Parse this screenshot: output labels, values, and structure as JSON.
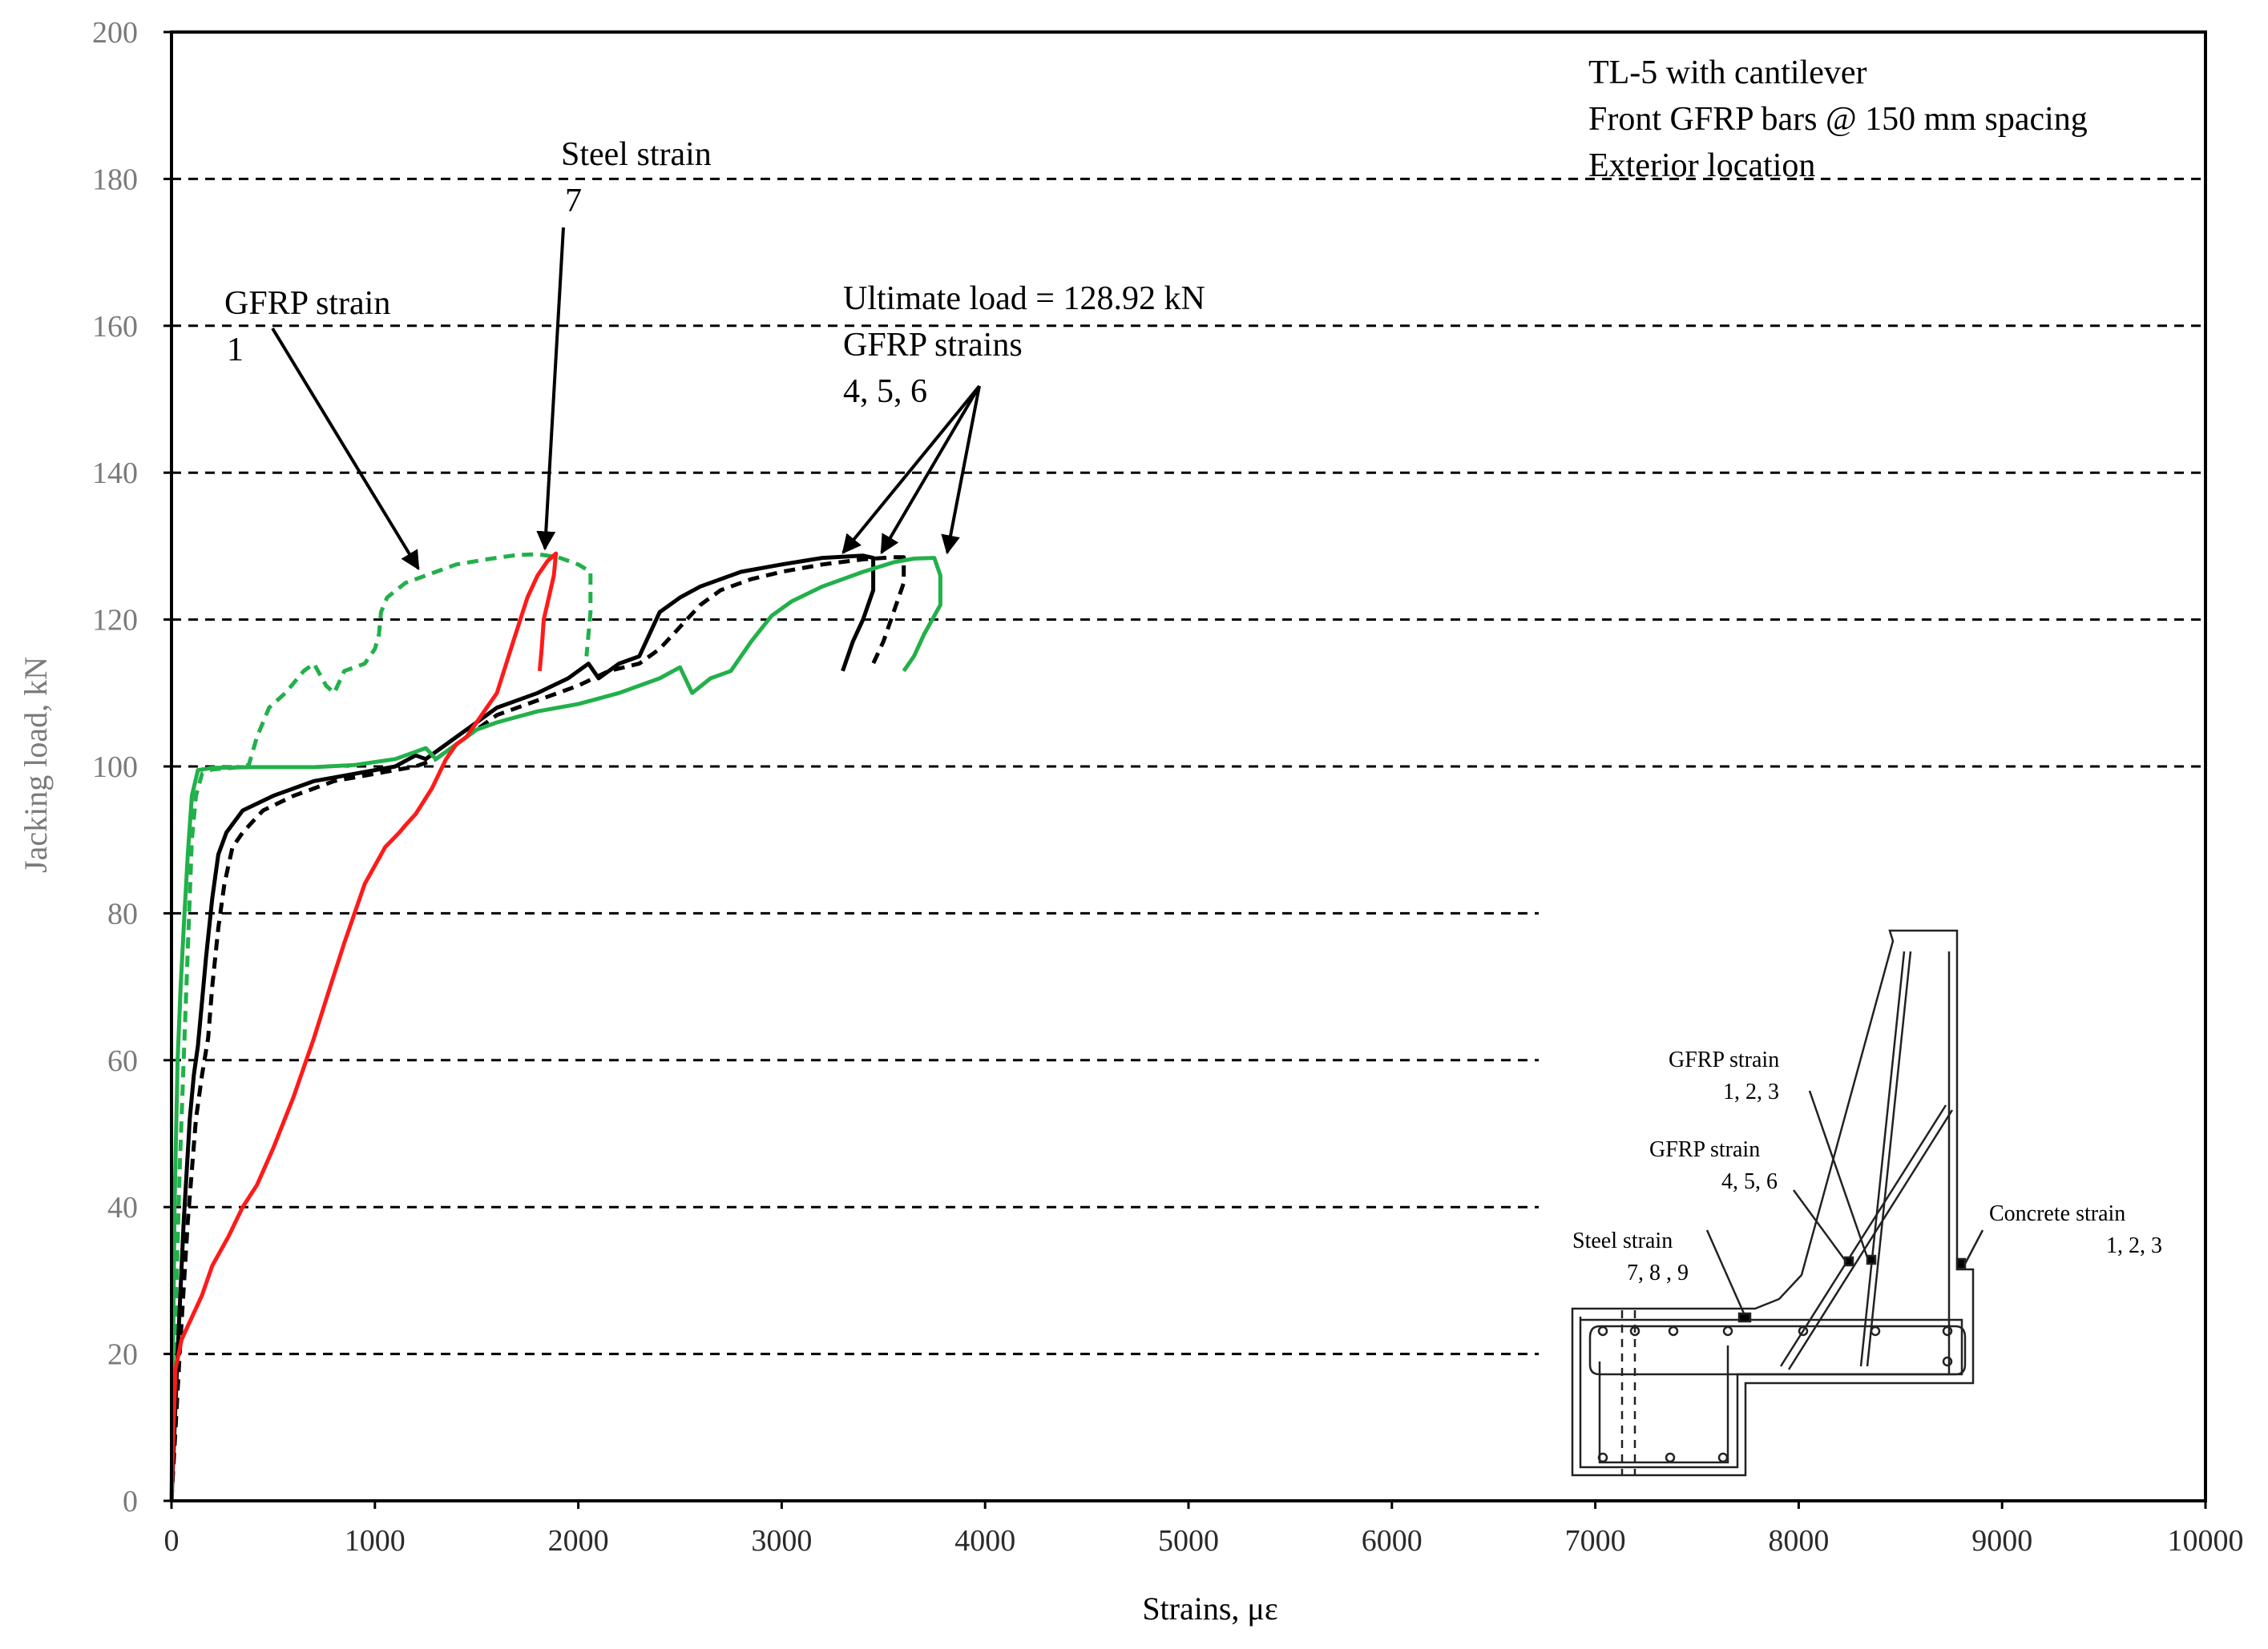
{
  "chart_data": {
    "type": "line",
    "xlabel": "Strains, με",
    "ylabel": "Jacking load, kN",
    "xlim": [
      0,
      10000
    ],
    "ylim": [
      0,
      200
    ],
    "xticks": [
      "0",
      "1000",
      "2000",
      "3000",
      "4000",
      "5000",
      "6000",
      "7000",
      "8000",
      "9000",
      "10000"
    ],
    "yticks": [
      "0",
      "20",
      "40",
      "60",
      "80",
      "100",
      "120",
      "140",
      "160",
      "180",
      "200"
    ],
    "grid": "horizontal dashed",
    "info_box": [
      "TL-5 with cantilever",
      "Front GFRP bars @ 150 mm spacing",
      "Exterior location"
    ],
    "annotations": {
      "gfrp1": [
        "GFRP strain",
        "1"
      ],
      "steel7": [
        "Steel strain",
        "7"
      ],
      "ultimate": [
        "Ultimate load = 128.92 kN",
        "GFRP strains",
        "4, 5, 6"
      ]
    },
    "inset_labels": {
      "gfrp123": [
        "GFRP strain",
        "1, 2, 3"
      ],
      "gfrp456": [
        "GFRP strain",
        "4, 5, 6"
      ],
      "steel789": [
        "Steel strain",
        "7, 8 , 9"
      ],
      "concrete": [
        "Concrete  strain",
        "1, 2, 3"
      ]
    },
    "series": [
      {
        "name": "GFRP strain 1",
        "color": "#22b04a",
        "dash": true,
        "points": [
          [
            0,
            0
          ],
          [
            20,
            25
          ],
          [
            40,
            45
          ],
          [
            60,
            60
          ],
          [
            80,
            75
          ],
          [
            100,
            90
          ],
          [
            120,
            96
          ],
          [
            150,
            99
          ],
          [
            200,
            99.6
          ],
          [
            300,
            99.8
          ],
          [
            380,
            100.2
          ],
          [
            420,
            104
          ],
          [
            480,
            108
          ],
          [
            560,
            110
          ],
          [
            650,
            113
          ],
          [
            700,
            114
          ],
          [
            760,
            111
          ],
          [
            800,
            110
          ],
          [
            850,
            113
          ],
          [
            950,
            114
          ],
          [
            1000,
            116
          ],
          [
            1020,
            118
          ],
          [
            1030,
            121
          ],
          [
            1060,
            123
          ],
          [
            1150,
            125
          ],
          [
            1250,
            126
          ],
          [
            1400,
            127.5
          ],
          [
            1550,
            128.2
          ],
          [
            1700,
            128.8
          ],
          [
            1800,
            128.9
          ],
          [
            1900,
            128.5
          ],
          [
            2000,
            127.5
          ],
          [
            2060,
            126.5
          ],
          [
            2060,
            121
          ],
          [
            2040,
            115
          ]
        ]
      },
      {
        "name": "GFRP strain 4",
        "color": "#000000",
        "dash": false,
        "points": [
          [
            0,
            0
          ],
          [
            30,
            20
          ],
          [
            60,
            38
          ],
          [
            90,
            52
          ],
          [
            110,
            58
          ],
          [
            130,
            62
          ],
          [
            150,
            68
          ],
          [
            170,
            74
          ],
          [
            200,
            82
          ],
          [
            230,
            88
          ],
          [
            270,
            91
          ],
          [
            350,
            94
          ],
          [
            500,
            96
          ],
          [
            700,
            98
          ],
          [
            900,
            99
          ],
          [
            1100,
            100
          ],
          [
            1200,
            101.5
          ],
          [
            1250,
            101
          ],
          [
            1300,
            102
          ],
          [
            1400,
            104
          ],
          [
            1500,
            106
          ],
          [
            1600,
            108
          ],
          [
            1800,
            110
          ],
          [
            1950,
            112
          ],
          [
            2050,
            114
          ],
          [
            2100,
            112
          ],
          [
            2200,
            114
          ],
          [
            2300,
            115
          ],
          [
            2350,
            118
          ],
          [
            2400,
            121
          ],
          [
            2500,
            123
          ],
          [
            2600,
            124.5
          ],
          [
            2800,
            126.5
          ],
          [
            3000,
            127.5
          ],
          [
            3200,
            128.4
          ],
          [
            3400,
            128.7
          ],
          [
            3450,
            128.4
          ],
          [
            3450,
            124
          ],
          [
            3400,
            120
          ],
          [
            3350,
            117
          ],
          [
            3300,
            113
          ]
        ]
      },
      {
        "name": "GFRP strain 5",
        "color": "#000000",
        "dash": true,
        "points": [
          [
            0,
            0
          ],
          [
            40,
            20
          ],
          [
            80,
            38
          ],
          [
            120,
            52
          ],
          [
            150,
            58
          ],
          [
            180,
            63
          ],
          [
            200,
            70
          ],
          [
            230,
            78
          ],
          [
            260,
            84
          ],
          [
            300,
            89
          ],
          [
            350,
            91
          ],
          [
            450,
            94
          ],
          [
            600,
            96
          ],
          [
            800,
            98
          ],
          [
            1000,
            99
          ],
          [
            1200,
            100
          ],
          [
            1300,
            101
          ],
          [
            1400,
            103
          ],
          [
            1500,
            105
          ],
          [
            1600,
            107
          ],
          [
            1800,
            109
          ],
          [
            2000,
            111
          ],
          [
            2150,
            113
          ],
          [
            2300,
            114
          ],
          [
            2400,
            116
          ],
          [
            2500,
            119
          ],
          [
            2600,
            122
          ],
          [
            2700,
            124
          ],
          [
            2850,
            125.5
          ],
          [
            3000,
            126.5
          ],
          [
            3200,
            127.5
          ],
          [
            3400,
            128.2
          ],
          [
            3550,
            128.5
          ],
          [
            3600,
            128.5
          ],
          [
            3600,
            125
          ],
          [
            3550,
            121
          ],
          [
            3500,
            117
          ],
          [
            3450,
            114
          ]
        ]
      },
      {
        "name": "GFRP strain 6",
        "color": "#22b04a",
        "dash": false,
        "points": [
          [
            0,
            0
          ],
          [
            15,
            40
          ],
          [
            30,
            60
          ],
          [
            45,
            70
          ],
          [
            60,
            78
          ],
          [
            80,
            88
          ],
          [
            100,
            96
          ],
          [
            130,
            99.5
          ],
          [
            200,
            99.8
          ],
          [
            400,
            99.9
          ],
          [
            700,
            99.9
          ],
          [
            900,
            100.2
          ],
          [
            1100,
            101
          ],
          [
            1200,
            102
          ],
          [
            1250,
            102.5
          ],
          [
            1300,
            101
          ],
          [
            1400,
            103
          ],
          [
            1500,
            105
          ],
          [
            1600,
            106
          ],
          [
            1800,
            107.5
          ],
          [
            2000,
            108.5
          ],
          [
            2200,
            110
          ],
          [
            2400,
            112
          ],
          [
            2500,
            113.5
          ],
          [
            2560,
            110
          ],
          [
            2650,
            112
          ],
          [
            2750,
            113
          ],
          [
            2850,
            117
          ],
          [
            2950,
            120.5
          ],
          [
            3050,
            122.5
          ],
          [
            3200,
            124.5
          ],
          [
            3400,
            126.5
          ],
          [
            3550,
            127.8
          ],
          [
            3650,
            128.3
          ],
          [
            3750,
            128.4
          ],
          [
            3780,
            126
          ],
          [
            3780,
            122
          ],
          [
            3700,
            118
          ],
          [
            3650,
            115
          ],
          [
            3600,
            113
          ]
        ]
      },
      {
        "name": "Steel strain 7",
        "color": "#ff1a1a",
        "dash": false,
        "points": [
          [
            0,
            0
          ],
          [
            10,
            10
          ],
          [
            20,
            18
          ],
          [
            50,
            22
          ],
          [
            100,
            25
          ],
          [
            150,
            28
          ],
          [
            200,
            32
          ],
          [
            280,
            36
          ],
          [
            350,
            40
          ],
          [
            420,
            43
          ],
          [
            500,
            48
          ],
          [
            600,
            55
          ],
          [
            700,
            63
          ],
          [
            780,
            70
          ],
          [
            850,
            76
          ],
          [
            950,
            84
          ],
          [
            1050,
            89
          ],
          [
            1120,
            91
          ],
          [
            1150,
            92
          ],
          [
            1200,
            93.5
          ],
          [
            1280,
            97
          ],
          [
            1350,
            101
          ],
          [
            1400,
            103
          ],
          [
            1450,
            104
          ],
          [
            1550,
            108
          ],
          [
            1600,
            110
          ],
          [
            1680,
            117
          ],
          [
            1750,
            123
          ],
          [
            1800,
            126
          ],
          [
            1850,
            128
          ],
          [
            1890,
            129
          ],
          [
            1880,
            126
          ],
          [
            1830,
            120
          ],
          [
            1820,
            116
          ],
          [
            1810,
            113
          ]
        ]
      }
    ]
  }
}
